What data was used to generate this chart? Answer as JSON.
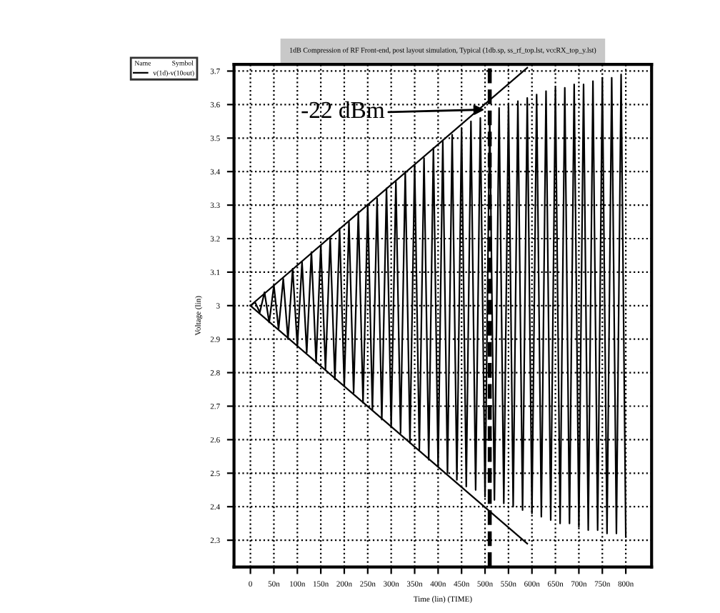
{
  "chart_data": {
    "type": "line",
    "title": "1dB Compression of RF Front-end, post layout simulation, Typical (1db.sp, ss_rf_top.lst, vccRX_top_y.lst)",
    "xlabel": "Time (lin) (TIME)",
    "ylabel": "Voltage (lin)",
    "legend_title": "Name            Symbol",
    "legend": "top left",
    "grid": true,
    "line_style": "solid",
    "xlim": [
      -35,
      855
    ],
    "ylim": [
      2.22,
      3.72
    ],
    "xticks": [
      {
        "value": 0,
        "label": "0"
      },
      {
        "value": 50,
        "label": "50n"
      },
      {
        "value": 100,
        "label": "100n"
      },
      {
        "value": 150,
        "label": "150n"
      },
      {
        "value": 200,
        "label": "200n"
      },
      {
        "value": 250,
        "label": "250n"
      },
      {
        "value": 300,
        "label": "300n"
      },
      {
        "value": 350,
        "label": "350n"
      },
      {
        "value": 400,
        "label": "400n"
      },
      {
        "value": 450,
        "label": "450n"
      },
      {
        "value": 500,
        "label": "500n"
      },
      {
        "value": 550,
        "label": "550n"
      },
      {
        "value": 600,
        "label": "600n"
      },
      {
        "value": 650,
        "label": "650n"
      },
      {
        "value": 700,
        "label": "700n"
      },
      {
        "value": 750,
        "label": "750n"
      },
      {
        "value": 800,
        "label": "800n"
      }
    ],
    "yticks": [
      2.3,
      2.4,
      2.5,
      2.6,
      2.7,
      2.8,
      2.9,
      3,
      3.1,
      3.2,
      3.3,
      3.4,
      3.5,
      3.6,
      3.7
    ],
    "series": [
      {
        "name": "v(1d)-v(10out)",
        "color": "#000000",
        "x": [
          0,
          10,
          20,
          30,
          40,
          50,
          60,
          70,
          80,
          90,
          100,
          110,
          120,
          130,
          140,
          150,
          160,
          170,
          180,
          190,
          200,
          210,
          220,
          230,
          240,
          250,
          260,
          270,
          280,
          290,
          300,
          310,
          320,
          330,
          340,
          350,
          360,
          370,
          380,
          390,
          400,
          410,
          420,
          430,
          440,
          450,
          460,
          470,
          480,
          490,
          500,
          510,
          520,
          530,
          540,
          550,
          560,
          570,
          580,
          590,
          600,
          610,
          620,
          630,
          640,
          650,
          660,
          670,
          680,
          690,
          700,
          710,
          720,
          730,
          740,
          750,
          760,
          770,
          780,
          790,
          800
        ],
        "values": [
          3.0,
          3.01,
          2.98,
          3.04,
          2.95,
          3.06,
          2.93,
          3.08,
          2.9,
          3.11,
          2.88,
          3.13,
          2.86,
          3.16,
          2.83,
          3.18,
          2.81,
          3.2,
          2.78,
          3.23,
          2.76,
          3.25,
          2.74,
          3.28,
          2.71,
          3.3,
          2.69,
          3.32,
          2.66,
          3.35,
          2.64,
          3.37,
          2.62,
          3.4,
          2.59,
          3.42,
          2.57,
          3.44,
          2.54,
          3.47,
          2.52,
          3.49,
          2.5,
          3.51,
          2.48,
          3.53,
          2.46,
          3.55,
          2.45,
          3.56,
          2.43,
          3.57,
          2.42,
          3.59,
          2.41,
          3.6,
          2.4,
          3.61,
          2.39,
          3.62,
          2.38,
          3.63,
          2.37,
          3.64,
          2.36,
          3.65,
          2.35,
          3.65,
          2.35,
          3.66,
          2.34,
          3.66,
          2.33,
          3.67,
          2.33,
          3.68,
          2.32,
          3.68,
          2.32,
          3.69,
          2.31
        ]
      },
      {
        "color": "#000000",
        "x": [
          0,
          590
        ],
        "values": [
          3.0,
          3.71
        ]
      },
      {
        "color": "#000000",
        "x": [
          0,
          590
        ],
        "values": [
          3.0,
          2.29
        ]
      }
    ],
    "ref_lines": [
      {
        "axis": "x",
        "value": 510,
        "color": "#000000",
        "line_style": "dashed"
      }
    ],
    "annotations": [
      "-22 dBm"
    ]
  }
}
